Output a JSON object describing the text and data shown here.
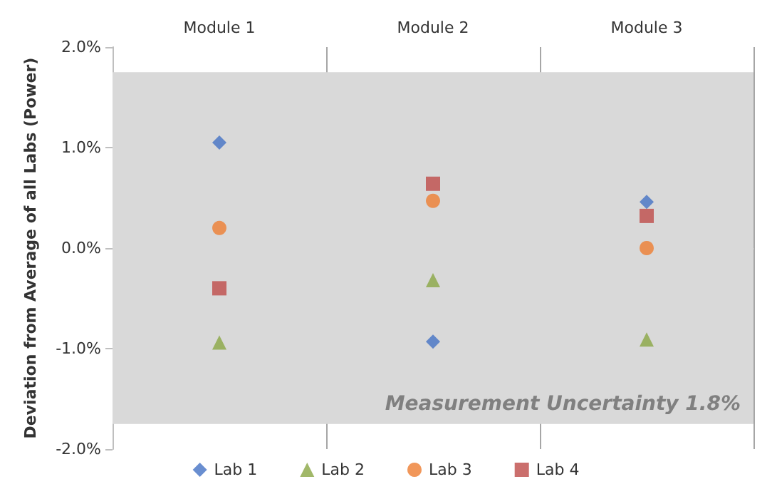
{
  "chart_data": {
    "type": "scatter",
    "ylabel": "Deviation from Average of all Labs (Power)",
    "categories": [
      "Module 1",
      "Module 2",
      "Module 3"
    ],
    "series": [
      {
        "name": "Lab 1",
        "color": "#4472c4",
        "marker": "diamond",
        "values": [
          1.05,
          -0.93,
          0.46
        ]
      },
      {
        "name": "Lab 2",
        "color": "#8aa644",
        "marker": "triangle",
        "values": [
          -0.94,
          -0.32,
          -0.91
        ]
      },
      {
        "name": "Lab 3",
        "color": "#ed7d31",
        "marker": "circle",
        "values": [
          0.2,
          0.47,
          0.0
        ]
      },
      {
        "name": "Lab 4",
        "color": "#be4b48",
        "marker": "square",
        "values": [
          -0.4,
          0.64,
          0.32
        ]
      }
    ],
    "ylim": [
      -2,
      2
    ],
    "yticks": [
      {
        "value": -2,
        "label": "-2.0%"
      },
      {
        "value": -1,
        "label": "-1.0%"
      },
      {
        "value": 0,
        "label": "0.0%"
      },
      {
        "value": 1,
        "label": "1.0%"
      },
      {
        "value": 2,
        "label": "2.0%"
      }
    ],
    "bands": [
      {
        "axis": "y",
        "from": -1.75,
        "to": 1.75,
        "label": "Measurement Uncertainty 1.8%",
        "color": "#d9d9d9"
      }
    ],
    "grid": "x",
    "legend": "bottom"
  }
}
